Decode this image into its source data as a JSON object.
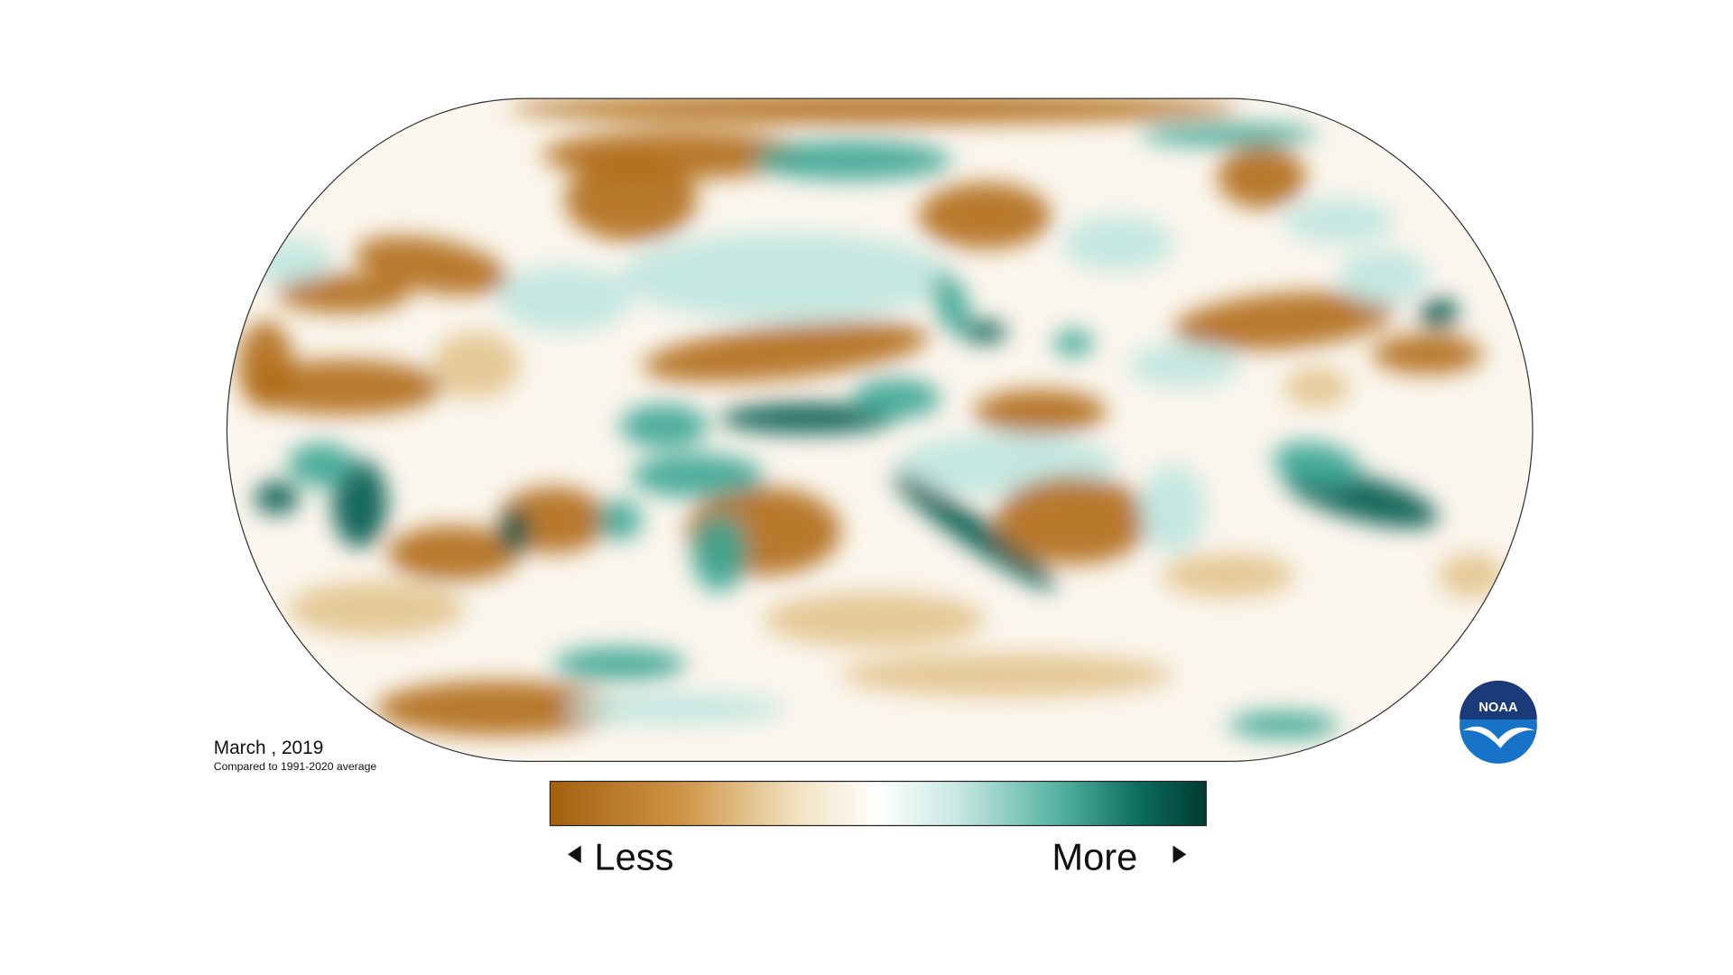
{
  "caption": {
    "title": "March , 2019",
    "subtitle": "Compared to 1991-2020 average"
  },
  "legend": {
    "low": "Less",
    "high": "More"
  },
  "logo": {
    "text": "NOAA"
  }
}
